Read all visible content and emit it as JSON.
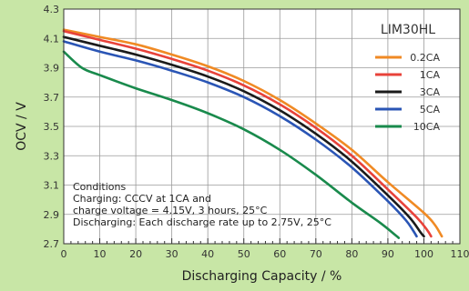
{
  "chart_data": {
    "type": "line",
    "title": "LIM30HL",
    "xlabel": "Discharging Capacity / %",
    "ylabel": "OCV / V",
    "xlim": [
      0,
      110
    ],
    "ylim": [
      2.7,
      4.3
    ],
    "xticks": [
      0,
      10,
      20,
      30,
      40,
      50,
      60,
      70,
      80,
      90,
      100,
      110
    ],
    "yticks": [
      2.7,
      2.9,
      3.1,
      3.3,
      3.5,
      3.7,
      3.9,
      4.1,
      4.3
    ],
    "xtick_labels": [
      "0",
      "10",
      "20",
      "30",
      "40",
      "50",
      "60",
      "70",
      "80",
      "90",
      "100",
      "110"
    ],
    "ytick_labels": [
      "2.7",
      "2.9",
      "3.1",
      "3.3",
      "3.5",
      "3.7",
      "3.9",
      "4.1",
      "4.3"
    ],
    "grid": true,
    "legend_position": "top-right",
    "series": [
      {
        "name": "0.2CA",
        "color": "#f08a24",
        "points": [
          [
            0,
            4.16
          ],
          [
            10,
            4.11
          ],
          [
            20,
            4.06
          ],
          [
            30,
            3.99
          ],
          [
            40,
            3.91
          ],
          [
            50,
            3.81
          ],
          [
            60,
            3.68
          ],
          [
            70,
            3.52
          ],
          [
            80,
            3.34
          ],
          [
            90,
            3.12
          ],
          [
            100,
            2.91
          ],
          [
            103,
            2.83
          ],
          [
            105,
            2.75
          ]
        ]
      },
      {
        "name": "1CA",
        "color": "#e8423a",
        "points": [
          [
            0,
            4.15
          ],
          [
            10,
            4.09
          ],
          [
            20,
            4.03
          ],
          [
            30,
            3.96
          ],
          [
            40,
            3.88
          ],
          [
            50,
            3.78
          ],
          [
            60,
            3.65
          ],
          [
            70,
            3.49
          ],
          [
            80,
            3.3
          ],
          [
            90,
            3.07
          ],
          [
            98,
            2.88
          ],
          [
            101,
            2.79
          ],
          [
            102,
            2.75
          ]
        ]
      },
      {
        "name": "3CA",
        "color": "#1a1a1a",
        "points": [
          [
            0,
            4.11
          ],
          [
            10,
            4.05
          ],
          [
            20,
            3.99
          ],
          [
            30,
            3.92
          ],
          [
            40,
            3.84
          ],
          [
            50,
            3.74
          ],
          [
            60,
            3.61
          ],
          [
            70,
            3.45
          ],
          [
            80,
            3.26
          ],
          [
            90,
            3.03
          ],
          [
            96,
            2.88
          ],
          [
            99,
            2.78
          ],
          [
            100,
            2.75
          ]
        ]
      },
      {
        "name": "5CA",
        "color": "#2a55b5",
        "points": [
          [
            0,
            4.08
          ],
          [
            10,
            4.01
          ],
          [
            20,
            3.95
          ],
          [
            30,
            3.88
          ],
          [
            40,
            3.8
          ],
          [
            50,
            3.7
          ],
          [
            60,
            3.57
          ],
          [
            70,
            3.41
          ],
          [
            80,
            3.22
          ],
          [
            90,
            2.99
          ],
          [
            95,
            2.86
          ],
          [
            97,
            2.79
          ],
          [
            98,
            2.75
          ]
        ]
      },
      {
        "name": "10CA",
        "color": "#198a4c",
        "points": [
          [
            0,
            4.01
          ],
          [
            5,
            3.9
          ],
          [
            10,
            3.85
          ],
          [
            20,
            3.76
          ],
          [
            30,
            3.68
          ],
          [
            40,
            3.59
          ],
          [
            50,
            3.48
          ],
          [
            60,
            3.34
          ],
          [
            70,
            3.17
          ],
          [
            80,
            2.98
          ],
          [
            88,
            2.84
          ],
          [
            92,
            2.76
          ],
          [
            93,
            2.74
          ]
        ]
      }
    ],
    "annotation_lines": [
      "Conditions",
      "Charging: CCCV at 1CA and",
      "charge voltage = 4.15V, 3 hours, 25°C",
      "Discharging: Each discharge rate up to 2.75V, 25°C"
    ]
  }
}
